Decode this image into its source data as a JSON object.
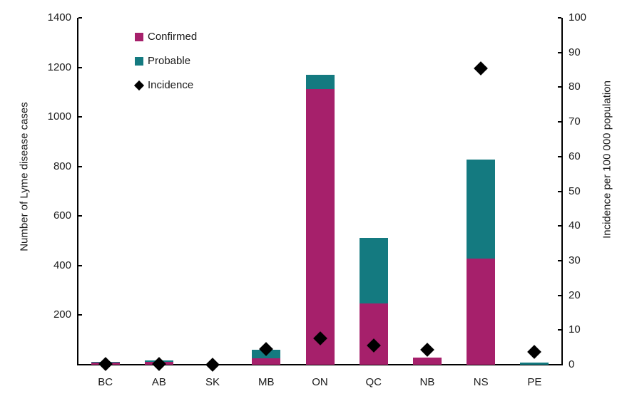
{
  "chart_data": {
    "type": "bar",
    "subtype": "stacked-bars-with-scatter-markers",
    "title": "",
    "categories": [
      "BC",
      "AB",
      "SK",
      "MB",
      "ON",
      "QC",
      "NB",
      "NS",
      "PE"
    ],
    "series": [
      {
        "name": "Confirmed",
        "type": "bar",
        "axis": "left",
        "color": "#A6206B",
        "values": [
          10,
          12,
          0,
          25,
          1113,
          247,
          30,
          429,
          0
        ]
      },
      {
        "name": "Probable",
        "type": "bar",
        "axis": "left",
        "color": "#147A80",
        "values": [
          2,
          4,
          0,
          35,
          56,
          264,
          0,
          399,
          8
        ]
      },
      {
        "name": "Incidence",
        "type": "scatter",
        "marker": "diamond",
        "axis": "right",
        "color": "#000000",
        "values": [
          0.3,
          0.3,
          0.1,
          4.5,
          7.5,
          5.5,
          4.4,
          85.5,
          3.7
        ]
      }
    ],
    "stacked": true,
    "left_axis": {
      "label": "Number of Lyme disease cases",
      "min": 0,
      "max": 1400,
      "ticks": [
        200,
        400,
        600,
        800,
        1000,
        1200,
        1400
      ]
    },
    "right_axis": {
      "label": "Incidence per 100 000 population",
      "min": 0,
      "max": 100,
      "ticks": [
        0,
        10,
        20,
        30,
        40,
        50,
        60,
        70,
        80,
        90,
        100
      ]
    },
    "x_axis": {
      "label": ""
    },
    "legend_position": "inside-top-left",
    "grid": false,
    "background_color": "#ffffff",
    "text_color": "#1a1a1a"
  }
}
